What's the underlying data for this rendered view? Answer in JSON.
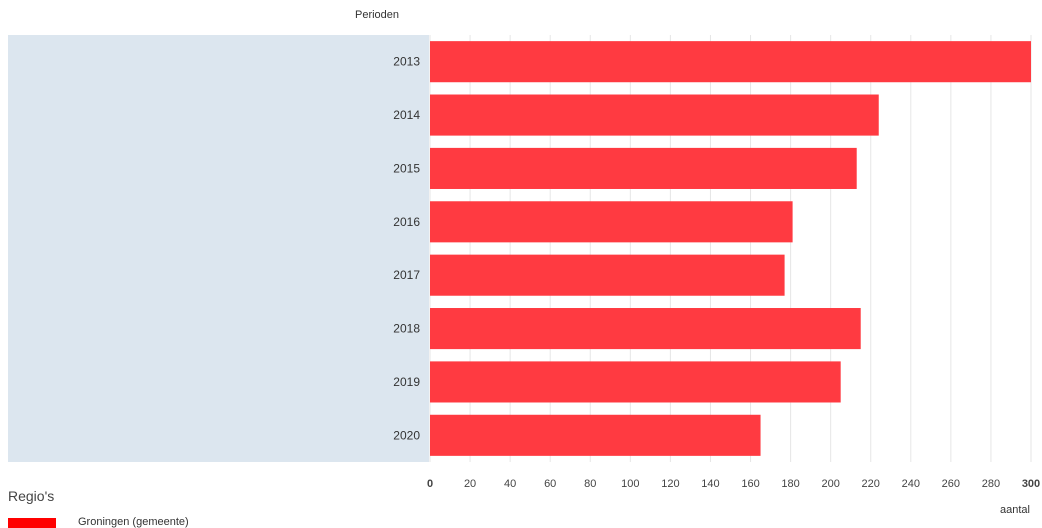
{
  "chart_data": {
    "type": "bar",
    "orientation": "horizontal",
    "categories": [
      "2013",
      "2014",
      "2015",
      "2016",
      "2017",
      "2018",
      "2019",
      "2020"
    ],
    "series": [
      {
        "name": "Groningen (gemeente)",
        "values": [
          301,
          224,
          213,
          181,
          177,
          215,
          205,
          165
        ]
      }
    ],
    "xlabel": "aantal",
    "ylabel": "Perioden",
    "xlim": [
      0,
      300
    ],
    "xticks": [
      "0",
      "20",
      "40",
      "60",
      "80",
      "100",
      "120",
      "140",
      "160",
      "180",
      "200",
      "220",
      "240",
      "260",
      "280",
      "300"
    ],
    "grid": true,
    "legend_title": "Regio's",
    "legend_position": "bottom-left",
    "colors": {
      "bar": "#ff3a41",
      "band": "#dce6ef",
      "grid": "#e6e6e6",
      "legend_swatch": "#ff0000"
    }
  }
}
